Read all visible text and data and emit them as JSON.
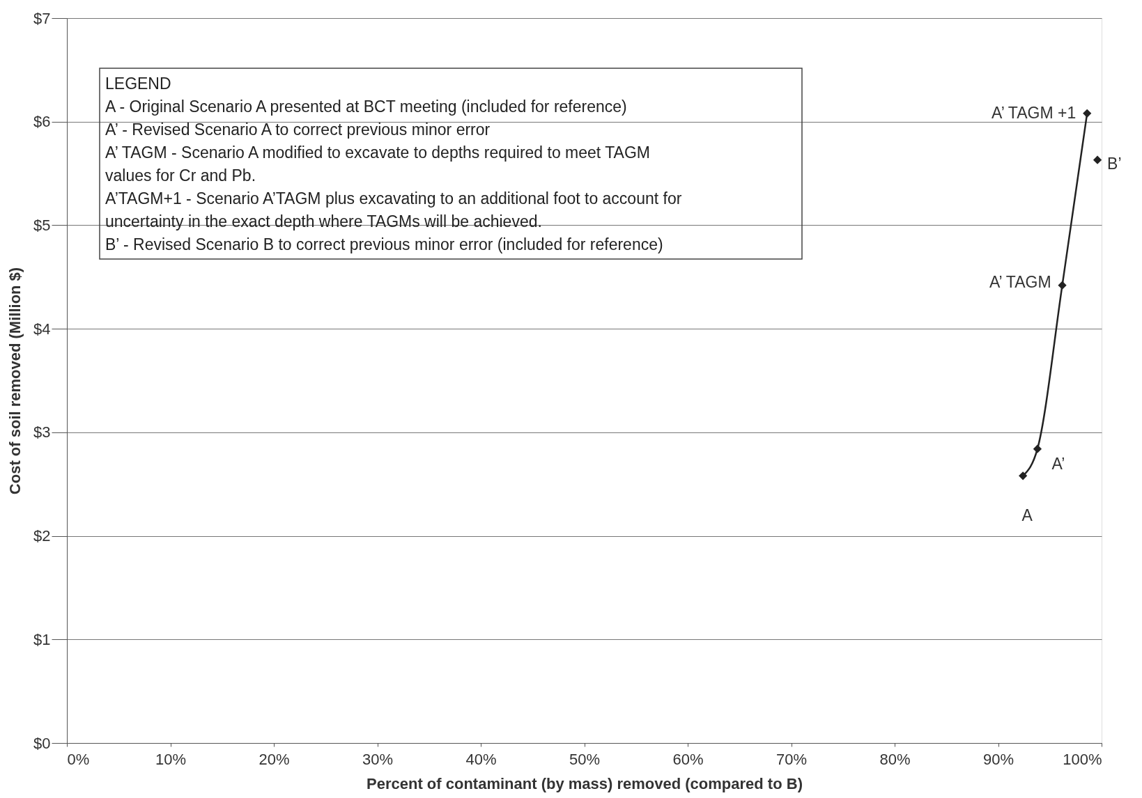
{
  "chart_data": {
    "type": "line",
    "xlabel": "Percent of contaminant (by mass) removed (compared to B)",
    "ylabel": "Cost of soil removed (Million $)",
    "series": [
      {
        "color": "#222222",
        "x": [
          92.4,
          93.8,
          96.2,
          98.6
        ],
        "values": [
          2.58,
          2.84,
          4.42,
          6.08
        ]
      },
      {
        "type": "scatter",
        "color": "#222222",
        "x": [
          99.6
        ],
        "values": [
          5.63
        ]
      }
    ],
    "xlim": [
      0,
      100
    ],
    "xticks": [
      {
        "value": 0,
        "label": "0%"
      },
      {
        "value": 10,
        "label": "10%"
      },
      {
        "value": 20,
        "label": "20%"
      },
      {
        "value": 30,
        "label": "30%"
      },
      {
        "value": 40,
        "label": "40%"
      },
      {
        "value": 50,
        "label": "50%"
      },
      {
        "value": 60,
        "label": "60%"
      },
      {
        "value": 70,
        "label": "70%"
      },
      {
        "value": 80,
        "label": "80%"
      },
      {
        "value": 90,
        "label": "90%"
      },
      {
        "value": 100,
        "label": "100%"
      }
    ],
    "ylim": [
      0,
      7
    ],
    "yticks": [
      {
        "value": 0,
        "label": "$0"
      },
      {
        "value": 1,
        "label": "$1"
      },
      {
        "value": 2,
        "label": "$2"
      },
      {
        "value": 3,
        "label": "$3"
      },
      {
        "value": 4,
        "label": "$4"
      },
      {
        "value": 5,
        "label": "$5"
      },
      {
        "value": 6,
        "label": "$6"
      },
      {
        "value": 7,
        "label": "$7"
      }
    ],
    "grid": "y",
    "marker": "diamond",
    "line_style": "solid",
    "annotations": [
      {
        "text": "A",
        "x": 92.4,
        "y": 2.58
      },
      {
        "text": "A’",
        "x": 93.8,
        "y": 2.84
      },
      {
        "text": "A’ TAGM",
        "x": 96.2,
        "y": 4.42
      },
      {
        "text": "A’ TAGM +1",
        "x": 98.6,
        "y": 6.08
      },
      {
        "text": "B’",
        "x": 99.6,
        "y": 5.63
      },
      "LEGEND",
      "A - Original Scenario A presented at BCT meeting (included for reference)",
      "A’ - Revised Scenario A  to correct previous minor error",
      "A’ TAGM - Scenario A modified to excavate to depths required to meet  TAGM",
      "values for Cr and Pb.",
      "A’TAGM+1 - Scenario A’TAGM plus excavating to an additional foot to account for",
      "uncertainty in the exact depth where TAGMs will be achieved.",
      "B’ - Revised Scenario B to correct previous minor error (included for reference)"
    ]
  }
}
